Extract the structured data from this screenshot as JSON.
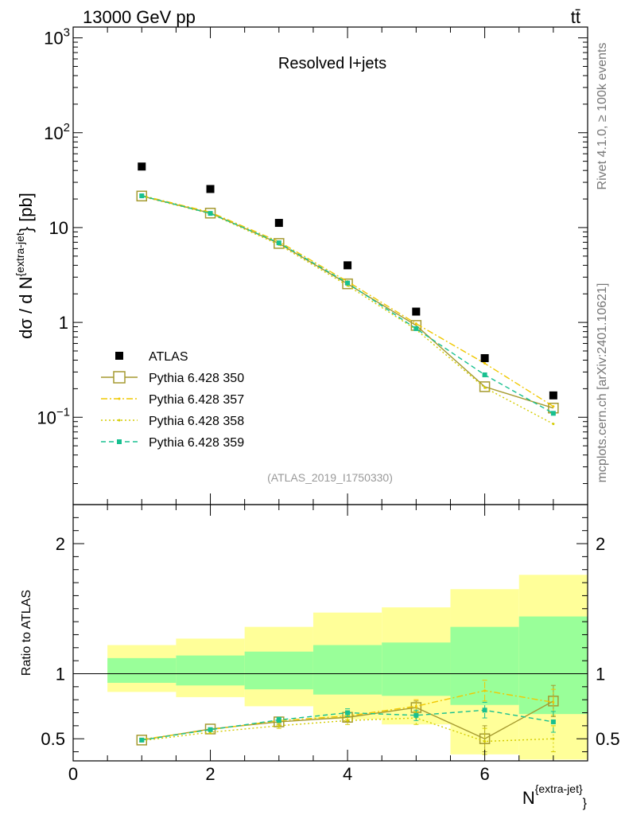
{
  "header": {
    "energy": "13000 GeV pp",
    "process": "tt̄"
  },
  "side_labels": {
    "rivet": "Rivet 4.1.0, ≥ 100k events",
    "mcplots": "mcplots.cern.ch [arXiv:2401.10621]"
  },
  "colors": {
    "atlas": "#000000",
    "p350": "#a59a30",
    "p357": "#f0c800",
    "p358": "#d4cc00",
    "p359": "#18c090",
    "band_inner": "#99ff99",
    "band_outer": "#ffff99"
  },
  "chart_data": {
    "type": "scatter",
    "title": "Resolved l+jets",
    "analysis_label": "(ATLAS_2019_I1750330)",
    "xlabel": "N^{extra-jet}",
    "xlabel_main": "N",
    "xlabel_sup": "{extra-jet}",
    "xlabel_sub": "}",
    "ylabel_main": "dσ / d N",
    "ylabel_sup": "{extra-jet",
    "ylabel_tail": "} [pb]",
    "ratio_ylabel": "Ratio to ATLAS",
    "xlim": [
      0,
      7.5
    ],
    "ylim_main": [
      0.012,
      1300
    ],
    "ylim_ratio": [
      0.33,
      2.3
    ],
    "yscale_main": "log",
    "x_ticks": [
      0,
      2,
      4,
      6
    ],
    "x_tick_labels": [
      "0",
      "2",
      "4",
      "6"
    ],
    "y_ticks_main": [
      0.1,
      1,
      10,
      100,
      1000
    ],
    "y_tick_labels_main": [
      {
        "base": "10",
        "exp": "−1"
      },
      {
        "base": "1",
        "exp": ""
      },
      {
        "base": "10",
        "exp": ""
      },
      {
        "base": "10",
        "exp": "2"
      },
      {
        "base": "10",
        "exp": "3"
      }
    ],
    "y_ticks_ratio": [
      0.5,
      1,
      2
    ],
    "y_tick_labels_ratio": [
      "0.5",
      "1",
      "2"
    ],
    "x": [
      1,
      2,
      3,
      4,
      5,
      6,
      7
    ],
    "bins": [
      [
        0.5,
        1.5
      ],
      [
        1.5,
        2.5
      ],
      [
        2.5,
        3.5
      ],
      [
        3.5,
        4.5
      ],
      [
        4.5,
        5.5
      ],
      [
        5.5,
        6.5
      ],
      [
        6.5,
        7.5
      ]
    ],
    "atlas_values": [
      44,
      25.5,
      11.2,
      4.0,
      1.3,
      0.42,
      0.17
    ],
    "band_inner": [
      [
        0.93,
        1.12
      ],
      [
        0.91,
        1.14
      ],
      [
        0.88,
        1.17
      ],
      [
        0.84,
        1.22
      ],
      [
        0.83,
        1.24
      ],
      [
        0.76,
        1.36
      ],
      [
        0.69,
        1.44
      ]
    ],
    "band_outer": [
      [
        0.86,
        1.22
      ],
      [
        0.82,
        1.27
      ],
      [
        0.75,
        1.36
      ],
      [
        0.65,
        1.47
      ],
      [
        0.61,
        1.51
      ],
      [
        0.38,
        1.65
      ],
      [
        0.34,
        1.76
      ]
    ],
    "series": [
      {
        "name": "Pythia 6.428 350",
        "key": "p350",
        "values": [
          21.5,
          14.2,
          6.8,
          2.55,
          0.93,
          0.21,
          0.125
        ],
        "ratio": [
          0.49,
          0.575,
          0.63,
          0.665,
          0.74,
          0.5,
          0.79
        ],
        "ratio_err": [
          0.01,
          0.01,
          0.02,
          0.03,
          0.05,
          0.1,
          0.12
        ],
        "style": "solid",
        "marker": "open-square"
      },
      {
        "name": "Pythia 6.428 357",
        "key": "p357",
        "values": [
          21.8,
          14.5,
          7.1,
          2.7,
          0.97,
          0.37,
          0.13
        ],
        "ratio": [
          0.495,
          0.57,
          0.64,
          0.675,
          0.75,
          0.87,
          0.78
        ],
        "ratio_err": [
          0.01,
          0.01,
          0.02,
          0.03,
          0.05,
          0.08,
          0.1
        ],
        "style": "dashdot",
        "marker": "dot"
      },
      {
        "name": "Pythia 6.428 358",
        "key": "p358",
        "values": [
          21.3,
          14.0,
          6.6,
          2.45,
          0.84,
          0.205,
          0.085
        ],
        "ratio": [
          0.485,
          0.55,
          0.6,
          0.64,
          0.66,
          0.48,
          0.5
        ],
        "ratio_err": [
          0.01,
          0.01,
          0.02,
          0.03,
          0.05,
          0.1,
          0.1
        ],
        "style": "dotted",
        "marker": "dot"
      },
      {
        "name": "Pythia 6.428 359",
        "key": "p359",
        "values": [
          21.6,
          14.1,
          6.9,
          2.6,
          0.86,
          0.28,
          0.11
        ],
        "ratio": [
          0.49,
          0.57,
          0.645,
          0.7,
          0.68,
          0.72,
          0.63
        ],
        "ratio_err": [
          0.01,
          0.01,
          0.02,
          0.03,
          0.04,
          0.06,
          0.08
        ],
        "style": "dashed",
        "marker": "filled-square"
      }
    ],
    "legend": {
      "atlas_label": "ATLAS",
      "position": "lower-left"
    }
  }
}
